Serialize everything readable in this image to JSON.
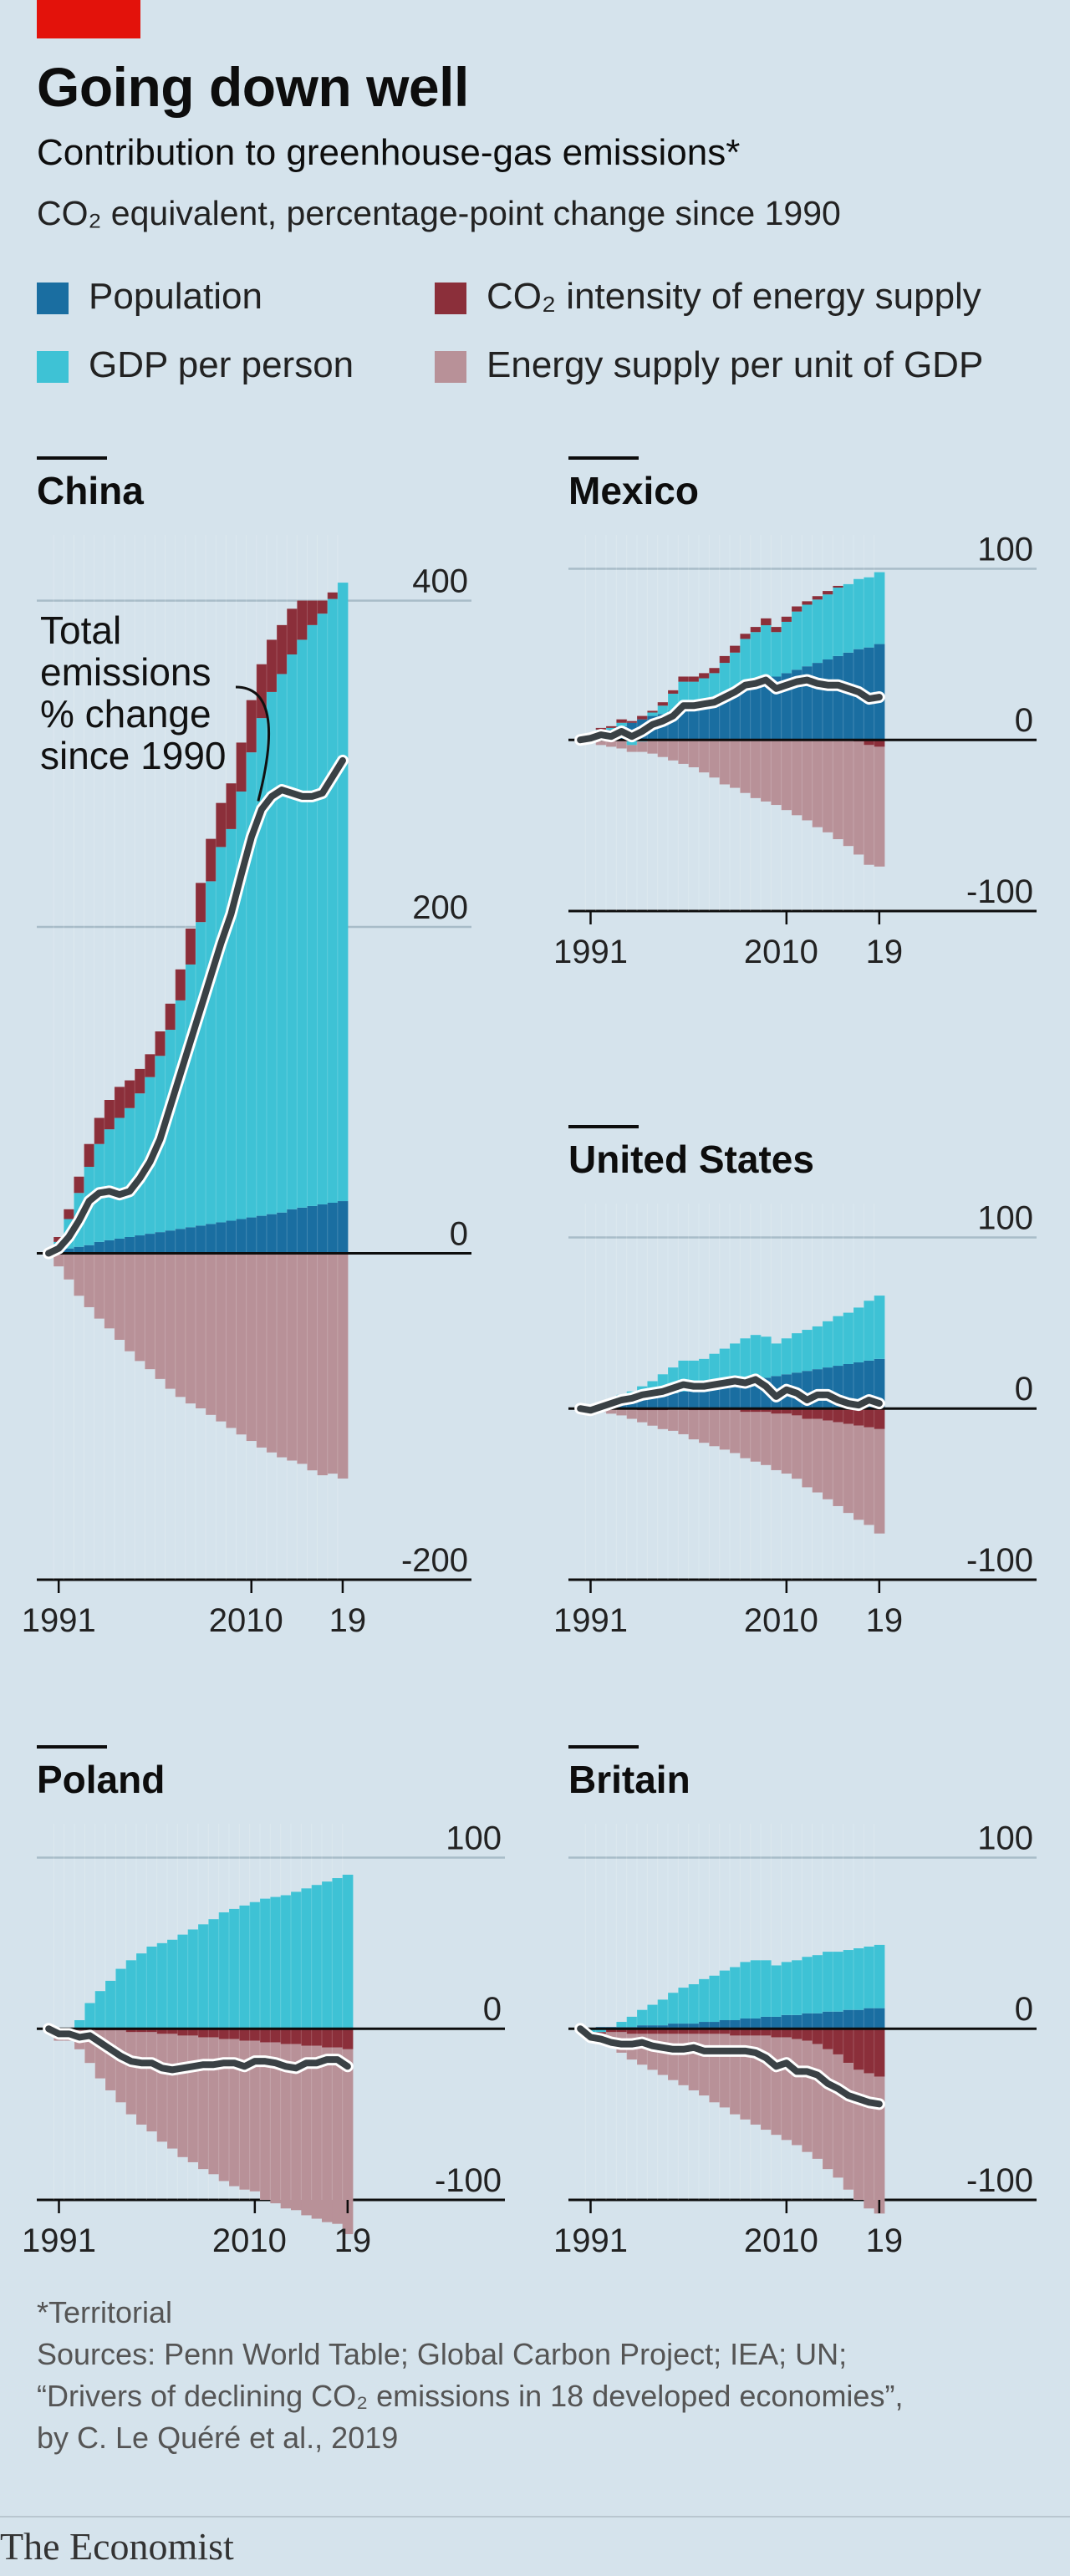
{
  "header": {
    "title": "Going down well",
    "subtitle": "Contribution to greenhouse-gas emissions*",
    "subtitle2": "CO₂ equivalent, percentage-point change since 1990"
  },
  "legend": [
    {
      "label": "Population",
      "color": "#1a6ea1"
    },
    {
      "label": "GDP per person",
      "color": "#3ec2d5"
    },
    {
      "label": "CO₂ intensity of energy supply",
      "color": "#8b2f3a"
    },
    {
      "label": "Energy supply per unit of GDP",
      "color": "#b89198"
    }
  ],
  "line_color": "#3a4145",
  "chart_data": [
    {
      "type": "bar",
      "stacked": true,
      "title": "China",
      "x": [
        1990,
        1991,
        1992,
        1993,
        1994,
        1995,
        1996,
        1997,
        1998,
        1999,
        2000,
        2001,
        2002,
        2003,
        2004,
        2005,
        2006,
        2007,
        2008,
        2009,
        2010,
        2011,
        2012,
        2013,
        2014,
        2015,
        2016,
        2017,
        2018,
        2019
      ],
      "xticks": [
        "1991",
        "2010",
        "19"
      ],
      "yticks": [
        400,
        200,
        0,
        -200
      ],
      "ylim": [
        -200,
        430
      ],
      "series": [
        {
          "name": "Population",
          "values": [
            0,
            1,
            3,
            4,
            5,
            7,
            8,
            9,
            10,
            11,
            12,
            13,
            14,
            15,
            16,
            17,
            18,
            19,
            20,
            21,
            22,
            23,
            24,
            25,
            27,
            28,
            29,
            30,
            31,
            32
          ]
        },
        {
          "name": "GDP per person",
          "values": [
            0,
            6,
            18,
            33,
            48,
            60,
            68,
            74,
            79,
            87,
            96,
            108,
            123,
            140,
            161,
            186,
            210,
            230,
            240,
            262,
            285,
            305,
            320,
            330,
            340,
            348,
            356,
            362,
            370,
            379
          ]
        },
        {
          "name": "CO₂ intensity of energy supply",
          "values": [
            0,
            3,
            6,
            10,
            14,
            16,
            18,
            19,
            17,
            15,
            14,
            15,
            16,
            19,
            22,
            24,
            26,
            27,
            28,
            30,
            32,
            33,
            32,
            30,
            28,
            24,
            15,
            8,
            4,
            0
          ]
        },
        {
          "name": "Energy supply per unit of GDP",
          "values": [
            -2,
            -8,
            -16,
            -26,
            -33,
            -40,
            -46,
            -53,
            -60,
            -66,
            -71,
            -77,
            -83,
            -88,
            -92,
            -95,
            -99,
            -103,
            -107,
            -111,
            -115,
            -119,
            -122,
            -125,
            -127,
            -129,
            -133,
            -136,
            -135,
            -138
          ]
        }
      ],
      "total": {
        "name": "Total emissions % change since 1990",
        "values": [
          0,
          3,
          10,
          20,
          32,
          37,
          38,
          36,
          38,
          46,
          56,
          70,
          90,
          110,
          130,
          150,
          170,
          190,
          208,
          232,
          255,
          272,
          280,
          284,
          282,
          280,
          280,
          282,
          292,
          302
        ]
      },
      "annotation": [
        "Total",
        "emissions",
        "% change",
        "since 1990"
      ]
    },
    {
      "type": "bar",
      "stacked": true,
      "title": "Mexico",
      "x": [
        1990,
        1991,
        1992,
        1993,
        1994,
        1995,
        1996,
        1997,
        1998,
        1999,
        2000,
        2001,
        2002,
        2003,
        2004,
        2005,
        2006,
        2007,
        2008,
        2009,
        2010,
        2011,
        2012,
        2013,
        2014,
        2015,
        2016,
        2017,
        2018,
        2019
      ],
      "xticks": [
        "1991",
        "2010",
        "19"
      ],
      "yticks": [
        100,
        0,
        -100
      ],
      "ylim": [
        -100,
        110
      ],
      "series": [
        {
          "name": "Population",
          "values": [
            0,
            2,
            4,
            6,
            8,
            10,
            12,
            14,
            15,
            17,
            19,
            21,
            23,
            25,
            27,
            29,
            31,
            33,
            35,
            37,
            39,
            41,
            43,
            45,
            47,
            49,
            51,
            53,
            54,
            56
          ]
        },
        {
          "name": "GDP per person",
          "values": [
            0,
            1,
            2,
            1,
            2,
            -3,
            -1,
            2,
            5,
            10,
            15,
            13,
            13,
            14,
            18,
            22,
            28,
            30,
            32,
            26,
            30,
            34,
            36,
            37,
            38,
            40,
            40,
            41,
            41,
            42
          ]
        },
        {
          "name": "CO₂ intensity of energy supply",
          "values": [
            0,
            0,
            1,
            1,
            2,
            1,
            2,
            1,
            2,
            2,
            3,
            3,
            3,
            3,
            4,
            4,
            3,
            3,
            4,
            3,
            3,
            3,
            2,
            2,
            2,
            1,
            0,
            -1,
            -3,
            -4
          ]
        },
        {
          "name": "Energy supply per unit of GDP",
          "values": [
            0,
            -1,
            -3,
            -4,
            -5,
            -4,
            -6,
            -8,
            -10,
            -12,
            -14,
            -16,
            -19,
            -22,
            -26,
            -28,
            -31,
            -34,
            -36,
            -38,
            -41,
            -44,
            -47,
            -51,
            -54,
            -58,
            -62,
            -66,
            -70,
            -70
          ]
        }
      ],
      "total": {
        "name": "Total emissions % change since 1990",
        "values": [
          0,
          1,
          3,
          2,
          5,
          2,
          5,
          9,
          11,
          14,
          20,
          20,
          21,
          22,
          25,
          28,
          32,
          33,
          35,
          30,
          32,
          34,
          35,
          33,
          32,
          32,
          30,
          28,
          24,
          25
        ]
      }
    },
    {
      "type": "bar",
      "stacked": true,
      "title": "United States",
      "x": [
        1990,
        1991,
        1992,
        1993,
        1994,
        1995,
        1996,
        1997,
        1998,
        1999,
        2000,
        2001,
        2002,
        2003,
        2004,
        2005,
        2006,
        2007,
        2008,
        2009,
        2010,
        2011,
        2012,
        2013,
        2014,
        2015,
        2016,
        2017,
        2018,
        2019
      ],
      "xticks": [
        "1991",
        "2010",
        "19"
      ],
      "yticks": [
        100,
        0,
        -100
      ],
      "ylim": [
        -100,
        110
      ],
      "series": [
        {
          "name": "Population",
          "values": [
            0,
            1,
            2,
            3,
            4,
            5,
            6,
            7,
            8,
            9,
            10,
            11,
            12,
            13,
            14,
            15,
            16,
            17,
            18,
            19,
            20,
            21,
            22,
            23,
            24,
            25,
            26,
            27,
            28,
            29
          ]
        },
        {
          "name": "GDP per person",
          "values": [
            0,
            -2,
            0,
            2,
            4,
            5,
            7,
            9,
            12,
            15,
            18,
            17,
            17,
            19,
            21,
            23,
            25,
            26,
            24,
            19,
            21,
            23,
            24,
            25,
            27,
            29,
            30,
            32,
            35,
            37
          ]
        },
        {
          "name": "CO₂ intensity of energy supply",
          "values": [
            0,
            0,
            0,
            0,
            0,
            0,
            -1,
            -1,
            -1,
            0,
            0,
            -1,
            -1,
            -1,
            -1,
            -1,
            -2,
            -2,
            -2,
            -3,
            -3,
            -4,
            -6,
            -6,
            -7,
            -8,
            -9,
            -10,
            -11,
            -12
          ]
        },
        {
          "name": "Energy supply per unit of GDP",
          "values": [
            0,
            -1,
            -2,
            -3,
            -4,
            -6,
            -7,
            -9,
            -11,
            -13,
            -15,
            -17,
            -19,
            -21,
            -23,
            -25,
            -27,
            -29,
            -31,
            -33,
            -35,
            -37,
            -40,
            -43,
            -46,
            -49,
            -52,
            -55,
            -57,
            -61
          ]
        }
      ],
      "total": {
        "name": "Total emissions % change since 1990",
        "values": [
          0,
          -1,
          1,
          3,
          5,
          6,
          8,
          9,
          10,
          12,
          14,
          13,
          13,
          14,
          15,
          16,
          15,
          17,
          13,
          7,
          11,
          9,
          5,
          8,
          8,
          5,
          3,
          2,
          5,
          3
        ]
      }
    },
    {
      "type": "bar",
      "stacked": true,
      "title": "Poland",
      "x": [
        1990,
        1991,
        1992,
        1993,
        1994,
        1995,
        1996,
        1997,
        1998,
        1999,
        2000,
        2001,
        2002,
        2003,
        2004,
        2005,
        2006,
        2007,
        2008,
        2009,
        2010,
        2011,
        2012,
        2013,
        2014,
        2015,
        2016,
        2017,
        2018,
        2019
      ],
      "xticks": [
        "1991",
        "2010",
        "19"
      ],
      "yticks": [
        100,
        0,
        -100
      ],
      "ylim": [
        -100,
        110
      ],
      "series": [
        {
          "name": "Population",
          "values": [
            0,
            0,
            0,
            0,
            0,
            0,
            0,
            0,
            0,
            0,
            0,
            0,
            0,
            0,
            0,
            0,
            0,
            0,
            0,
            0,
            0,
            0,
            0,
            0,
            0,
            0,
            0,
            0,
            0,
            0
          ]
        },
        {
          "name": "GDP per person",
          "values": [
            0,
            -5,
            -2,
            5,
            15,
            22,
            28,
            35,
            40,
            44,
            48,
            50,
            52,
            55,
            58,
            61,
            64,
            68,
            70,
            72,
            74,
            76,
            77,
            78,
            80,
            82,
            84,
            86,
            88,
            90
          ]
        },
        {
          "name": "CO₂ intensity of energy supply",
          "values": [
            0,
            0,
            0,
            0,
            0,
            -1,
            -1,
            -1,
            -2,
            -2,
            -2,
            -3,
            -3,
            -4,
            -4,
            -5,
            -5,
            -6,
            -6,
            -7,
            -7,
            -8,
            -8,
            -9,
            -9,
            -10,
            -10,
            -11,
            -11,
            -12
          ]
        },
        {
          "name": "Energy supply per unit of GDP",
          "values": [
            0,
            -2,
            -5,
            -12,
            -20,
            -28,
            -35,
            -42,
            -48,
            -54,
            -58,
            -63,
            -67,
            -71,
            -74,
            -77,
            -80,
            -83,
            -86,
            -87,
            -88,
            -92,
            -94,
            -96,
            -97,
            -99,
            -101,
            -102,
            -103,
            -108
          ]
        }
      ],
      "total": {
        "name": "Total emissions % change since 1990",
        "values": [
          0,
          -3,
          -3,
          -5,
          -4,
          -8,
          -12,
          -16,
          -19,
          -20,
          -20,
          -23,
          -24,
          -23,
          -22,
          -21,
          -21,
          -20,
          -20,
          -22,
          -19,
          -19,
          -20,
          -22,
          -23,
          -20,
          -20,
          -18,
          -18,
          -22
        ]
      }
    },
    {
      "type": "bar",
      "stacked": true,
      "title": "Britain",
      "x": [
        1990,
        1991,
        1992,
        1993,
        1994,
        1995,
        1996,
        1997,
        1998,
        1999,
        2000,
        2001,
        2002,
        2003,
        2004,
        2005,
        2006,
        2007,
        2008,
        2009,
        2010,
        2011,
        2012,
        2013,
        2014,
        2015,
        2016,
        2017,
        2018,
        2019
      ],
      "xticks": [
        "1991",
        "2010",
        "19"
      ],
      "yticks": [
        100,
        0,
        -100
      ],
      "ylim": [
        -100,
        110
      ],
      "series": [
        {
          "name": "Population",
          "values": [
            0,
            0,
            1,
            1,
            1,
            1,
            2,
            2,
            2,
            3,
            3,
            3,
            4,
            4,
            5,
            5,
            6,
            6,
            7,
            7,
            8,
            8,
            9,
            9,
            10,
            10,
            11,
            11,
            12,
            12
          ]
        },
        {
          "name": "GDP per person",
          "values": [
            0,
            -2,
            -2,
            0,
            3,
            6,
            9,
            12,
            15,
            18,
            21,
            23,
            25,
            27,
            29,
            31,
            33,
            34,
            33,
            30,
            31,
            32,
            33,
            34,
            35,
            35,
            35,
            36,
            36,
            37
          ]
        },
        {
          "name": "CO₂ intensity of energy supply",
          "values": [
            0,
            -1,
            -1,
            -2,
            -2,
            -3,
            -3,
            -3,
            -3,
            -3,
            -3,
            -3,
            -3,
            -3,
            -3,
            -4,
            -4,
            -4,
            -4,
            -5,
            -5,
            -6,
            -7,
            -9,
            -12,
            -15,
            -20,
            -24,
            -26,
            -28
          ]
        },
        {
          "name": "Energy supply per unit of GDP",
          "values": [
            0,
            -2,
            -4,
            -8,
            -12,
            -15,
            -18,
            -21,
            -24,
            -27,
            -30,
            -33,
            -36,
            -40,
            -43,
            -46,
            -49,
            -52,
            -55,
            -57,
            -60,
            -62,
            -65,
            -67,
            -70,
            -72,
            -74,
            -76,
            -79,
            -80
          ]
        }
      ],
      "total": {
        "name": "Total emissions % change since 1990",
        "values": [
          0,
          -5,
          -6,
          -8,
          -9,
          -9,
          -8,
          -10,
          -11,
          -12,
          -12,
          -11,
          -13,
          -13,
          -13,
          -13,
          -13,
          -14,
          -17,
          -22,
          -20,
          -25,
          -25,
          -27,
          -32,
          -35,
          -39,
          -41,
          -43,
          -44
        ]
      }
    }
  ],
  "footer": {
    "note": "*Territorial",
    "sources": "Sources: Penn World Table; Global Carbon Project; IEA; UN;",
    "sources2": "“Drivers of declining CO₂ emissions in 18 developed economies”,",
    "sources3": "by C. Le Quéré et al., 2019",
    "brand": "The Economist"
  }
}
